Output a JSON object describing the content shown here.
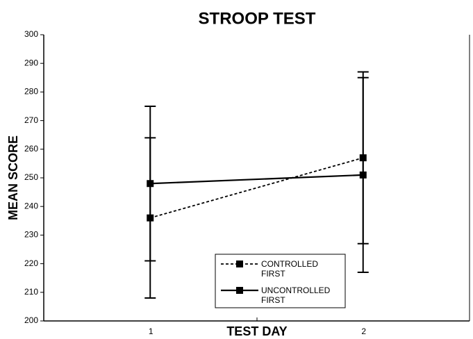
{
  "chart_data": {
    "type": "line",
    "title": "STROOP TEST",
    "x_label": "TEST DAY",
    "y_label": "MEAN SCORE",
    "categories": [
      "1",
      "2"
    ],
    "series": [
      {
        "name": "CONTROLLED FIRST",
        "color": "#000000",
        "dash": true,
        "values": [
          236,
          257
        ],
        "errors": [
          28,
          30
        ]
      },
      {
        "name": "UNCONTROLLED FIRST",
        "color": "#000000",
        "dash": false,
        "values": [
          248,
          251
        ],
        "errors": [
          27,
          34
        ]
      }
    ],
    "ylim": [
      200,
      300
    ],
    "yticks": [
      200,
      210,
      220,
      230,
      240,
      250,
      260,
      270,
      280,
      290,
      300
    ],
    "grid": false,
    "legend": "bottom"
  }
}
